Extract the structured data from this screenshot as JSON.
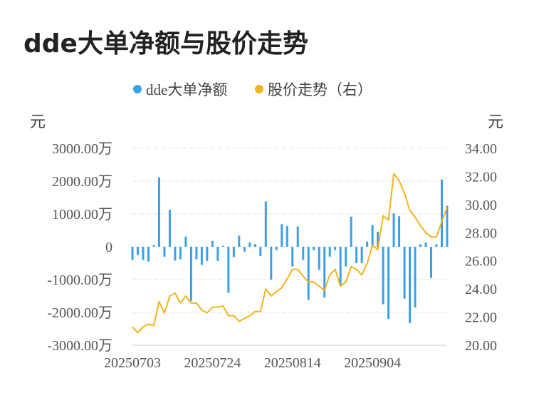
{
  "title": "dde大单净额与股价走势",
  "colors": {
    "bar": "#3ba0e6",
    "line": "#f3b31d",
    "grid": "#e6e6e6"
  },
  "chart_data": {
    "type": "bar+line",
    "title": "dde大单净额与股价走势",
    "legend": [
      {
        "name": "dde大单净额",
        "color": "#3ba0e6",
        "icon": "circle"
      },
      {
        "name": "股价走势（右）",
        "color": "#f3b31d",
        "icon": "circle"
      }
    ],
    "legend_position": "top-center",
    "left_unit": "元",
    "right_unit": "元",
    "left_ticks": [
      "3000.00万",
      "2000.00万",
      "1000.00万",
      "0",
      "-1000.00万",
      "-2000.00万",
      "-3000.00万"
    ],
    "right_ticks": [
      "34.00",
      "32.00",
      "30.00",
      "28.00",
      "26.00",
      "24.00",
      "22.00",
      "20.00"
    ],
    "ylim_left": [
      -3000,
      3000
    ],
    "ylim_right": [
      20,
      34
    ],
    "x_tick_labels": [
      "20250703",
      "20250724",
      "20250814",
      "20250904"
    ],
    "grid": true,
    "series": [
      {
        "name": "dde大单净额",
        "type": "bar",
        "axis": "left",
        "unit": "万元",
        "values": [
          -400,
          -250,
          -400,
          -450,
          50,
          2120,
          -300,
          1130,
          -420,
          -380,
          310,
          -1650,
          -380,
          -550,
          -430,
          180,
          -430,
          30,
          -1400,
          -310,
          340,
          -150,
          130,
          80,
          -280,
          1380,
          -1000,
          -100,
          690,
          630,
          -600,
          620,
          -400,
          -1620,
          -100,
          -700,
          -1550,
          -300,
          -100,
          -1200,
          -600,
          920,
          -500,
          -500,
          160,
          660,
          460,
          -1750,
          -2200,
          1020,
          930,
          -1580,
          -2330,
          -1850,
          80,
          130,
          -950,
          80,
          2050,
          1250
        ]
      },
      {
        "name": "股价走势（右）",
        "type": "line",
        "axis": "right",
        "unit": "元",
        "values": [
          21.3,
          20.9,
          21.3,
          21.5,
          21.4,
          23.1,
          22.3,
          23.5,
          23.7,
          23.0,
          23.5,
          23.0,
          23.0,
          22.5,
          22.3,
          22.7,
          22.7,
          22.8,
          22.1,
          22.1,
          21.7,
          21.9,
          22.1,
          22.4,
          22.4,
          24.0,
          23.5,
          23.8,
          24.1,
          24.7,
          25.4,
          25.4,
          24.9,
          24.5,
          24.5,
          24.2,
          23.9,
          25.0,
          25.4,
          24.2,
          24.5,
          25.6,
          25.4,
          25.0,
          25.8,
          27.1,
          26.8,
          29.2,
          28.9,
          32.2,
          31.7,
          30.8,
          29.6,
          29.1,
          28.5,
          28.0,
          27.7,
          27.7,
          28.8,
          29.8
        ]
      }
    ]
  }
}
